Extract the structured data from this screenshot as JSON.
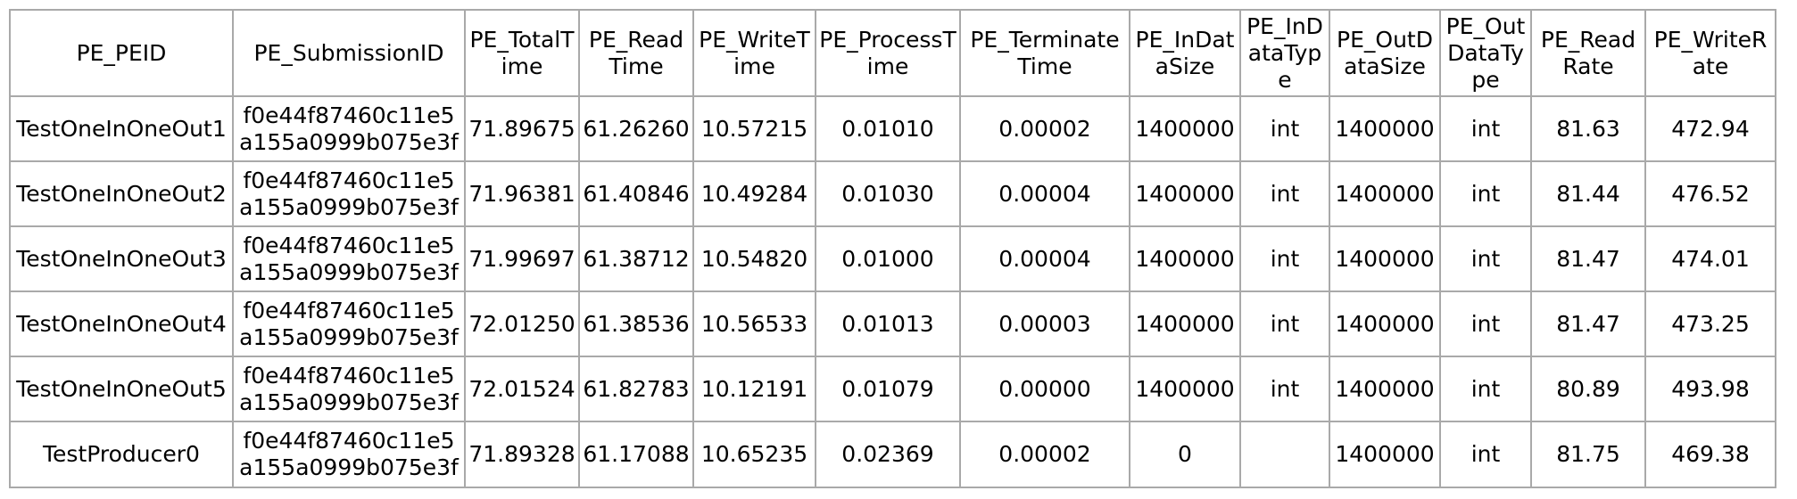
{
  "table": {
    "headers": [
      "PE_PEID",
      "PE_SubmissionID",
      "PE_TotalTime",
      "PE_ReadTime",
      "PE_WriteTime",
      "PE_ProcessTime",
      "PE_TerminateTime",
      "PE_InDataSize",
      "PE_InDataType",
      "PE_OutDataSize",
      "PE_OutDataType",
      "PE_ReadRate",
      "PE_WriteRate"
    ],
    "rows": [
      [
        "TestOneInOneOut1",
        "f0e44f87460c11e5a155a0999b075e3f",
        "71.89675",
        "61.26260",
        "10.57215",
        "0.01010",
        "0.00002",
        "1400000",
        "int",
        "1400000",
        "int",
        "81.63",
        "472.94"
      ],
      [
        "TestOneInOneOut2",
        "f0e44f87460c11e5a155a0999b075e3f",
        "71.96381",
        "61.40846",
        "10.49284",
        "0.01030",
        "0.00004",
        "1400000",
        "int",
        "1400000",
        "int",
        "81.44",
        "476.52"
      ],
      [
        "TestOneInOneOut3",
        "f0e44f87460c11e5a155a0999b075e3f",
        "71.99697",
        "61.38712",
        "10.54820",
        "0.01000",
        "0.00004",
        "1400000",
        "int",
        "1400000",
        "int",
        "81.47",
        "474.01"
      ],
      [
        "TestOneInOneOut4",
        "f0e44f87460c11e5a155a0999b075e3f",
        "72.01250",
        "61.38536",
        "10.56533",
        "0.01013",
        "0.00003",
        "1400000",
        "int",
        "1400000",
        "int",
        "81.47",
        "473.25"
      ],
      [
        "TestOneInOneOut5",
        "f0e44f87460c11e5a155a0999b075e3f",
        "72.01524",
        "61.82783",
        "10.12191",
        "0.01079",
        "0.00000",
        "1400000",
        "int",
        "1400000",
        "int",
        "80.89",
        "493.98"
      ],
      [
        "TestProducer0",
        "f0e44f87460c11e5a155a0999b075e3f",
        "71.89328",
        "61.17088",
        "10.65235",
        "0.02369",
        "0.00002",
        "0",
        "",
        "1400000",
        "int",
        "81.75",
        "469.38"
      ]
    ]
  }
}
